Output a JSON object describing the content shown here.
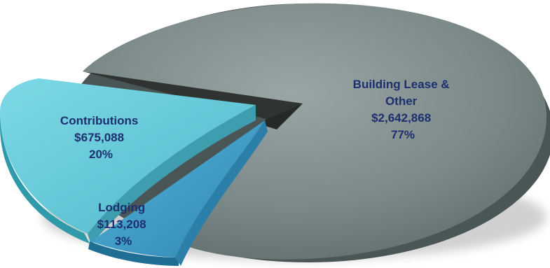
{
  "chart_data": {
    "type": "pie",
    "style": "3d-exploded",
    "title": "",
    "slices": [
      {
        "label": "Building Lease & Other",
        "amount": "$2,642,868",
        "percent": "77%",
        "value": 2642868,
        "color": "#7d8b8a",
        "edge_color": "#3f4a49"
      },
      {
        "label": "Contributions",
        "amount": "$675,088",
        "percent": "20%",
        "value": 675088,
        "color": "#5cc8d8",
        "edge_color": "#2f8e9a"
      },
      {
        "label": "Lodging",
        "amount": "$113,208",
        "percent": "3%",
        "value": 113208,
        "color": "#3d9cc8",
        "edge_color": "#1f5f80"
      }
    ]
  },
  "labels": {
    "building": [
      "Building Lease &",
      "Other",
      "$2,642,868",
      "77%"
    ],
    "contributions": [
      "Contributions",
      "$675,088",
      "20%"
    ],
    "lodging": [
      "Lodging",
      "$113,208",
      "3%"
    ]
  }
}
